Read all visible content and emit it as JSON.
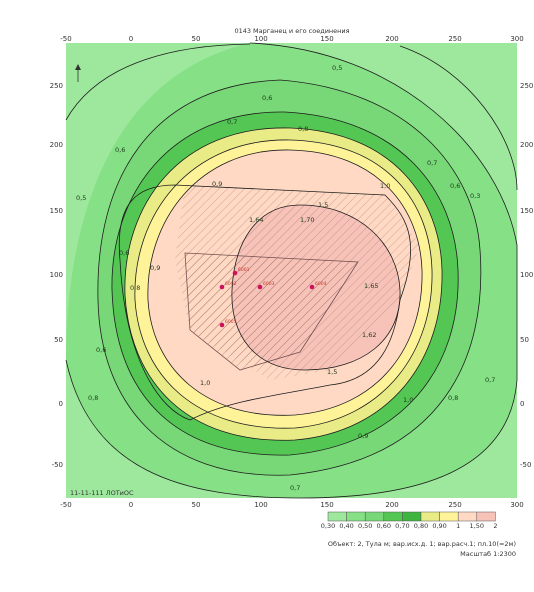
{
  "title": "0143 Марганец и его соединения",
  "x_ticks_top": [
    "-50",
    "0",
    "50",
    "100",
    "150",
    "200",
    "250",
    "300"
  ],
  "x_ticks_bottom": [
    "-50",
    "0",
    "50",
    "100",
    "150",
    "200",
    "250",
    "300"
  ],
  "y_ticks_left": [
    "250",
    "200",
    "150",
    "100",
    "50",
    "0",
    "-50"
  ],
  "y_ticks_right": [
    "250",
    "200",
    "150",
    "100",
    "50",
    "0",
    "-50"
  ],
  "contour_labels": {
    "l03": "0,3",
    "l05": "0,5",
    "l06": "0,6",
    "l07": "0,7",
    "l08": "0,8",
    "l09": "0,9",
    "l10": "1,0",
    "l15": "1,5",
    "l162": "1,62",
    "l165": "1,65",
    "l164": "1,64",
    "l170": "1,70"
  },
  "sources": [
    "6001",
    "6002",
    "6003",
    "6004",
    "6005"
  ],
  "stamp": "11-11-111 ЛОТиОС",
  "legend": {
    "values": [
      "0,30",
      "0,40",
      "0,50",
      "0,60",
      "0,70",
      "0,80",
      "0,90",
      "1",
      "1,50",
      "2"
    ],
    "colors": [
      "#9de89d",
      "#86e086",
      "#78d878",
      "#54c654",
      "#3fb43f",
      "#e9ec86",
      "#fff39a",
      "#ffd9c4",
      "#f7c2b8"
    ]
  },
  "caption": "Объект: 2, Тула м; вар.исх.д. 1; вар.расч.1; пл.10(=2м)",
  "scale": "Масштаб 1:2300",
  "colors": {
    "frame_bg": "#9de89d",
    "zone_06": "#86e086",
    "zone_07": "#78d878",
    "zone_08": "#54c654",
    "zone_09": "#e9ec86",
    "zone_10": "#fff39a",
    "zone_15": "#ffd9c4",
    "zone_16": "#f7c2b8",
    "source": "#d0105a",
    "contour": "#1d1d1d"
  }
}
